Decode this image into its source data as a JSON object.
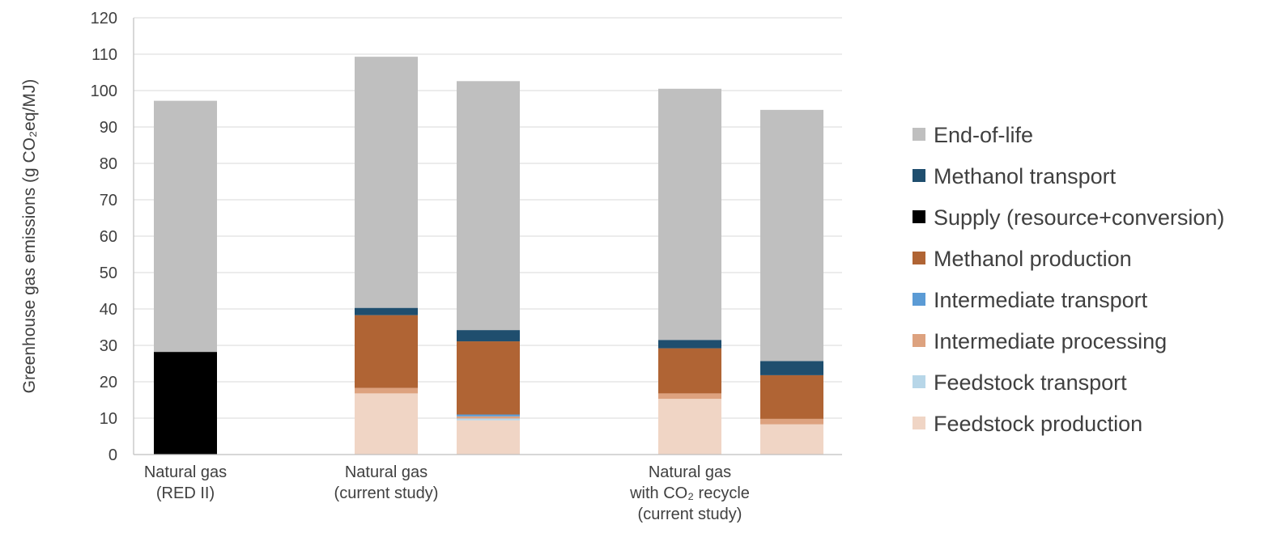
{
  "chart_data": {
    "type": "bar",
    "stacked": true,
    "ylabel": "Greenhouse gas emissions (g CO₂eq/MJ)",
    "ylim": [
      0,
      120
    ],
    "yticks": [
      0,
      10,
      20,
      30,
      40,
      50,
      60,
      70,
      80,
      90,
      100,
      110,
      120
    ],
    "grid": true,
    "legend_position": "right",
    "groups": [
      {
        "label_lines": [
          "Natural gas",
          "(RED II)"
        ],
        "bars": [
          0
        ]
      },
      {
        "label_lines": [
          "Natural gas",
          "(current study)"
        ],
        "bars": [
          1,
          2
        ]
      },
      {
        "label_lines": [
          "Natural gas",
          "with CO₂ recycle",
          "(current study)"
        ],
        "bars": [
          3,
          4
        ]
      }
    ],
    "series": [
      {
        "name": "Feedstock production",
        "color": "#F0D5C5",
        "values": [
          0,
          16.8,
          9.4,
          15.3,
          8.3
        ]
      },
      {
        "name": "Feedstock transport",
        "color": "#B7D6E8",
        "values": [
          0,
          0,
          0.5,
          0,
          0
        ]
      },
      {
        "name": "Intermediate processing",
        "color": "#DDA27F",
        "values": [
          0,
          1.5,
          0.6,
          1.5,
          1.5
        ]
      },
      {
        "name": "Intermediate transport",
        "color": "#5B9BD5",
        "values": [
          0,
          0,
          0.5,
          0,
          0
        ]
      },
      {
        "name": "Methanol production",
        "color": "#B06434",
        "values": [
          0,
          20.0,
          20.1,
          12.4,
          12.0
        ]
      },
      {
        "name": "Supply (resource+conversion)",
        "color": "#000000",
        "values": [
          28.2,
          0,
          0,
          0,
          0
        ]
      },
      {
        "name": "Methanol transport",
        "color": "#1F4E6E",
        "values": [
          0,
          2.0,
          3.1,
          2.3,
          3.9
        ]
      },
      {
        "name": "End-of-life",
        "color": "#BFBFBF",
        "values": [
          69.0,
          69.0,
          68.4,
          69.0,
          69.0
        ]
      }
    ],
    "legend_order": [
      "End-of-life",
      "Methanol transport",
      "Supply (resource+conversion)",
      "Methanol production",
      "Intermediate transport",
      "Intermediate processing",
      "Feedstock transport",
      "Feedstock production"
    ]
  }
}
